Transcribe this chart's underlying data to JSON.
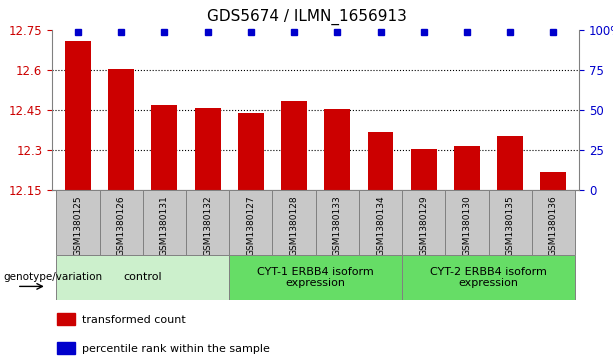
{
  "title": "GDS5674 / ILMN_1656913",
  "samples": [
    "GSM1380125",
    "GSM1380126",
    "GSM1380131",
    "GSM1380132",
    "GSM1380127",
    "GSM1380128",
    "GSM1380133",
    "GSM1380134",
    "GSM1380129",
    "GSM1380130",
    "GSM1380135",
    "GSM1380136"
  ],
  "values": [
    12.71,
    12.605,
    12.47,
    12.46,
    12.44,
    12.485,
    12.455,
    12.37,
    12.305,
    12.315,
    12.355,
    12.22
  ],
  "ylim": [
    12.15,
    12.75
  ],
  "yticks": [
    12.15,
    12.3,
    12.45,
    12.6,
    12.75
  ],
  "ytick_labels": [
    "12.15",
    "12.3",
    "12.45",
    "12.6",
    "12.75"
  ],
  "right_yticks": [
    0,
    25,
    50,
    75,
    100
  ],
  "right_ytick_labels": [
    "0",
    "25",
    "50",
    "75",
    "100%"
  ],
  "bar_color": "#cc0000",
  "dot_color": "#0000cc",
  "bg_color": "#ffffff",
  "tick_bg_color": "#c8c8c8",
  "tick_border_color": "#808080",
  "groups": [
    {
      "label": "control",
      "start": 0,
      "end": 3,
      "color": "#ccf0cc"
    },
    {
      "label": "CYT-1 ERBB4 isoform\nexpression",
      "start": 4,
      "end": 7,
      "color": "#66dd66"
    },
    {
      "label": "CYT-2 ERBB4 isoform\nexpression",
      "start": 8,
      "end": 11,
      "color": "#66dd66"
    }
  ],
  "genotype_label": "genotype/variation",
  "legend_items": [
    {
      "color": "#cc0000",
      "label": "transformed count"
    },
    {
      "color": "#0000cc",
      "label": "percentile rank within the sample"
    }
  ]
}
